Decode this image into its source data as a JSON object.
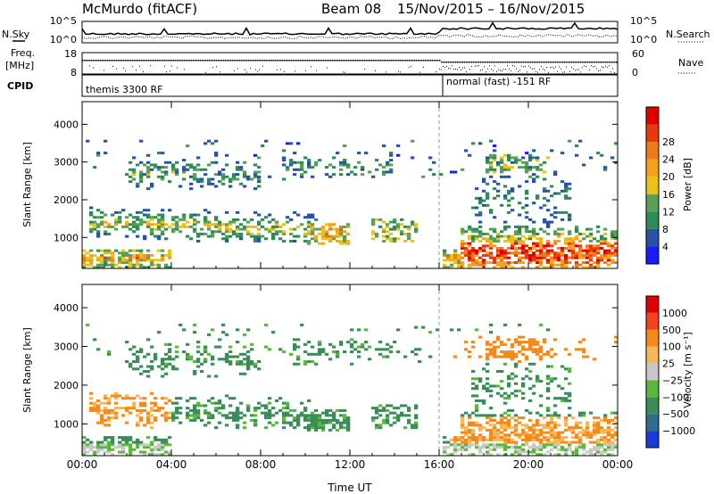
{
  "header": {
    "title": "McMurdo (fitACF)",
    "beam": "Beam 08",
    "date_range": "15/Nov/2015 – 16/Nov/2015"
  },
  "top_panels": {
    "nsky_label": "N.Sky",
    "nsearch_label": "N.Search",
    "noise_ticks": [
      "10^5",
      "10^0"
    ],
    "freq_label_1": "Freq.",
    "freq_label_2": "[MHz]",
    "freq_ticks": [
      "18",
      "8"
    ],
    "nave_label": "Nave",
    "nave_ticks": [
      "60",
      "0"
    ],
    "cpid_label": "CPID",
    "cpid_segments": [
      "themis 3300 RF",
      "normal (fast) -151 RF"
    ]
  },
  "colors": {
    "power": [
      "#1a1aff",
      "#2952a3",
      "#2e8b57",
      "#5a9e5a",
      "#e8c31a",
      "#f5a21a",
      "#f07a1a",
      "#e53a0f",
      "#e00000"
    ],
    "velocity": [
      "#e00000",
      "#f0451a",
      "#f5891a",
      "#f5b75a",
      "#c8c8c8",
      "#5ab93c",
      "#3c8c5a",
      "#2e6e8c",
      "#1a3ad9"
    ]
  },
  "chart_data": [
    {
      "type": "heatmap",
      "quantity": "Power",
      "xlabel": "",
      "ylabel": "Slant Range [km]",
      "x_ticks": [
        "00:00",
        "04:00",
        "08:00",
        "12:00",
        "16:00",
        "20:00",
        "00:00"
      ],
      "x_range_hours": [
        0,
        24
      ],
      "ylim": [
        180,
        4600
      ],
      "y_ticks": [
        1000,
        2000,
        3000,
        4000
      ],
      "colorbar_label": "Power [dB]",
      "colorbar_ticks": [
        4,
        8,
        12,
        16,
        20,
        24,
        28
      ],
      "colorbar_range": [
        0,
        32
      ]
    },
    {
      "type": "heatmap",
      "quantity": "Velocity",
      "xlabel": "Time UT",
      "ylabel": "Slant Range [km]",
      "x_ticks": [
        "00:00",
        "04:00",
        "08:00",
        "12:00",
        "16:00",
        "20:00",
        "00:00"
      ],
      "x_range_hours": [
        0,
        24
      ],
      "ylim": [
        180,
        4600
      ],
      "y_ticks": [
        1000,
        2000,
        3000,
        4000
      ],
      "colorbar_label": "Velocity [m s⁻¹]",
      "colorbar_ticks": [
        "1000",
        "500",
        "100",
        "25",
        "−25",
        "−100",
        "−500",
        "−1000"
      ]
    }
  ]
}
